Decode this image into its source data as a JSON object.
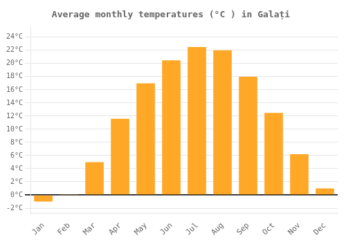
{
  "chart_data": {
    "type": "bar",
    "title": "Average monthly temperatures (°C ) in Galați",
    "categories": [
      "Jan",
      "Feb",
      "Mar",
      "Apr",
      "May",
      "Jun",
      "Jul",
      "Aug",
      "Sep",
      "Oct",
      "Nov",
      "Dec"
    ],
    "values": [
      -1.0,
      0.1,
      5.0,
      11.6,
      17.0,
      20.5,
      22.5,
      22.0,
      18.0,
      12.5,
      6.2,
      1.0
    ],
    "color": "#FFA726",
    "ylim": [
      -2.8,
      25.5
    ],
    "yticks": [
      {
        "value": 24,
        "label": "24°C"
      },
      {
        "value": 22,
        "label": "22°C"
      },
      {
        "value": 20,
        "label": "20°C"
      },
      {
        "value": 18,
        "label": "18°C"
      },
      {
        "value": 16,
        "label": "16°C"
      },
      {
        "value": 14,
        "label": "14°C"
      },
      {
        "value": 12,
        "label": "12°C"
      },
      {
        "value": 10,
        "label": "10°C"
      },
      {
        "value": 8,
        "label": "8°C"
      },
      {
        "value": 6,
        "label": "6°C"
      },
      {
        "value": 4,
        "label": "4°C"
      },
      {
        "value": 2,
        "label": "2°C"
      },
      {
        "value": 0,
        "label": "0°C"
      },
      {
        "value": -2,
        "label": "-2°C"
      }
    ],
    "grid": true
  }
}
